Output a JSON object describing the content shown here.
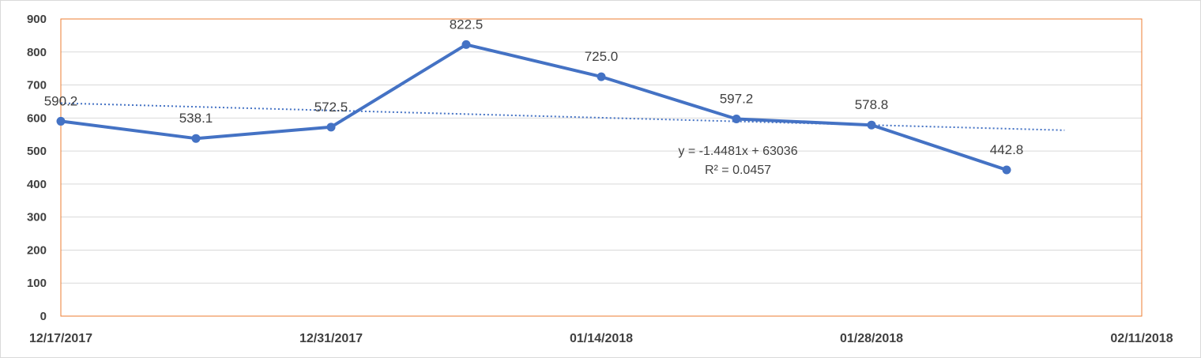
{
  "chart_data": {
    "type": "line",
    "title": "",
    "xlabel": "",
    "ylabel": "",
    "x_tick_labels": [
      "12/17/2017",
      "12/31/2017",
      "01/14/2018",
      "01/28/2018",
      "02/11/2018"
    ],
    "x_ticks": [
      "2017-12-17",
      "2017-12-31",
      "2018-01-14",
      "2018-01-28",
      "2018-02-11"
    ],
    "xlim": [
      "2017-12-17",
      "2018-02-11"
    ],
    "ylim": [
      0,
      900
    ],
    "y_ticks": [
      0,
      100,
      200,
      300,
      400,
      500,
      600,
      700,
      800,
      900
    ],
    "series": [
      {
        "x": [
          "2017-12-17",
          "2017-12-24",
          "2017-12-31",
          "2018-01-07",
          "2018-01-14",
          "2018-01-21",
          "2018-01-28",
          "2018-02-04"
        ],
        "values": [
          590.2,
          538.1,
          572.5,
          822.5,
          725.0,
          597.2,
          578.8,
          442.8
        ],
        "data_labels": [
          "590.2",
          "538.1",
          "572.5",
          "822.5",
          "725.0",
          "597.2",
          "578.8",
          "442.8"
        ],
        "color": "#4472c4",
        "markers": true
      }
    ],
    "trendline": {
      "type": "linear",
      "style": "dotted",
      "color": "#4472c4",
      "x_start": "2017-12-17",
      "x_end": "2018-02-07",
      "y_start": 645,
      "y_end": 563,
      "equation": "y = -1.4481x + 63036",
      "r_squared": "R² = 0.0457"
    },
    "plot_border_color": "#ed7d31",
    "gridline_color": "#d9d9d9",
    "grid": true,
    "legend": "none"
  }
}
